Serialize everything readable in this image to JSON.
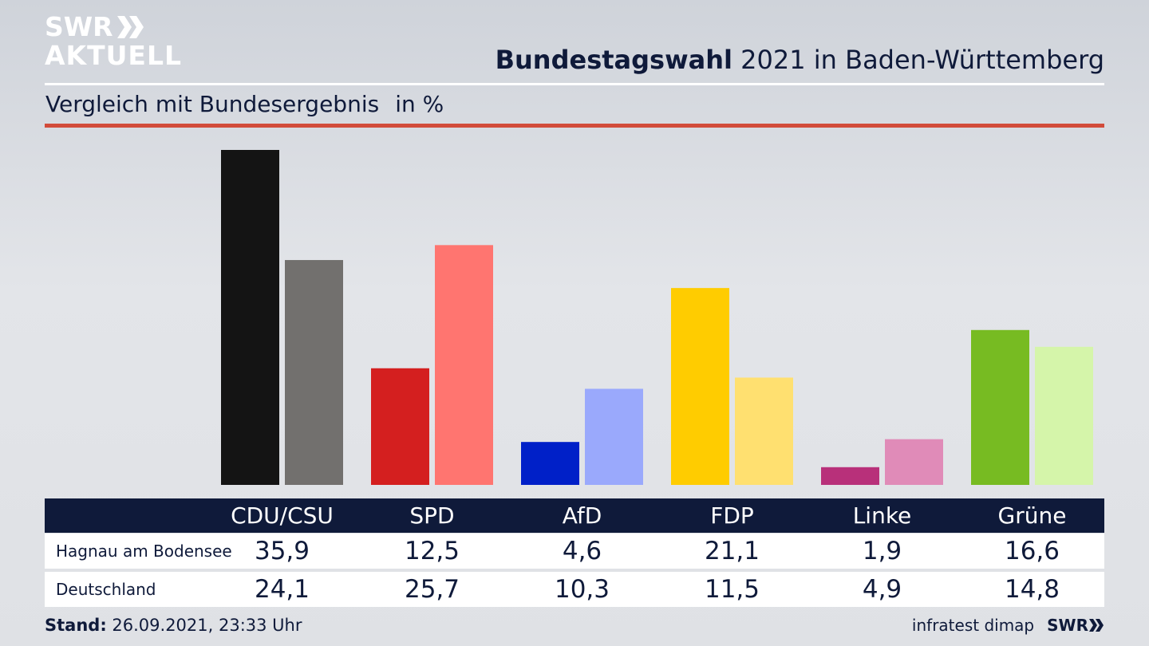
{
  "logo": {
    "line1": "SWR",
    "line2": "AKTUELL",
    "icon": "double-chevron-icon"
  },
  "header": {
    "title_bold": "Bundestagswahl",
    "title_rest": " 2021 in Baden-Württemberg",
    "subtitle": "Vergleich mit Bundesergebnis",
    "unit": "in %"
  },
  "chart_data": {
    "type": "bar",
    "categories": [
      "CDU/CSU",
      "SPD",
      "AfD",
      "FDP",
      "Linke",
      "Grüne"
    ],
    "series": [
      {
        "name": "Hagnau am Bodensee",
        "values": [
          35.9,
          12.5,
          4.6,
          21.1,
          1.9,
          16.6
        ],
        "display": [
          "35,9",
          "12,5",
          "4,6",
          "21,1",
          "1,9",
          "16,6"
        ],
        "colors": [
          "#141414",
          "#d41f1f",
          "#0020c8",
          "#ffcc00",
          "#b8307a",
          "#77bb22"
        ]
      },
      {
        "name": "Deutschland",
        "values": [
          24.1,
          25.7,
          10.3,
          11.5,
          4.9,
          14.8
        ],
        "display": [
          "24,1",
          "25,7",
          "10,3",
          "11,5",
          "4,9",
          "14,8"
        ],
        "colors": [
          "#72706e",
          "#ff7570",
          "#9aa9fc",
          "#ffe070",
          "#e08bb8",
          "#d5f5aa"
        ]
      }
    ],
    "ylim": [
      0,
      35.9
    ]
  },
  "footer": {
    "stand_label": "Stand:",
    "stand_value": " 26.09.2021, 23:33 Uhr",
    "source": "infratest dimap",
    "brand": "SWR"
  }
}
